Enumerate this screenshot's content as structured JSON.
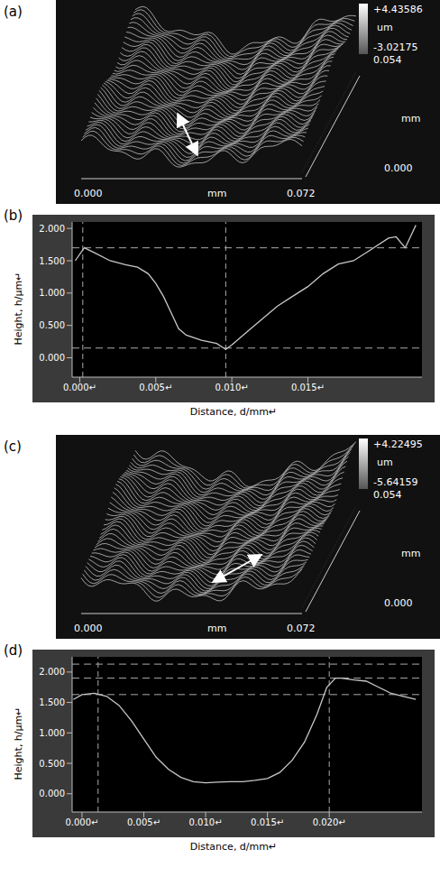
{
  "chart_data": [
    {
      "type": "surface",
      "panel": "(a)",
      "zmax_label": "+4.43586",
      "z_unit": "um",
      "zmin_label": "-3.02175",
      "y_range_labels": [
        "0.054",
        "0.000"
      ],
      "y_unit": "mm",
      "x_range_labels": [
        "0.000",
        "0.072"
      ],
      "x_unit": "mm"
    },
    {
      "type": "line",
      "panel": "(b)",
      "xlabel": "Distance, d/mm↵",
      "ylabel": "Height, h/μm↵",
      "color": "#c8c8c8",
      "x": [
        -0.0003,
        0.0003,
        0.001,
        0.002,
        0.003,
        0.0038,
        0.0045,
        0.005,
        0.0055,
        0.006,
        0.0065,
        0.007,
        0.008,
        0.009,
        0.0096,
        0.01,
        0.011,
        0.012,
        0.013,
        0.014,
        0.015,
        0.016,
        0.017,
        0.018,
        0.019,
        0.0203,
        0.0208,
        0.0214,
        0.0221
      ],
      "values": [
        1.5,
        1.7,
        1.62,
        1.5,
        1.44,
        1.4,
        1.3,
        1.15,
        0.95,
        0.7,
        0.45,
        0.35,
        0.27,
        0.22,
        0.13,
        0.2,
        0.4,
        0.6,
        0.8,
        0.95,
        1.1,
        1.3,
        1.45,
        1.5,
        1.65,
        1.85,
        1.87,
        1.7,
        2.05
      ],
      "xlim": [
        -0.0005,
        0.0225
      ],
      "ylim": [
        -0.3,
        2.1
      ],
      "xticks": [
        {
          "value": 0,
          "label": "0.000↵"
        },
        {
          "value": 0.005,
          "label": "0.005↵"
        },
        {
          "value": 0.01,
          "label": "0.010↵"
        },
        {
          "value": 0.015,
          "label": "0.015↵"
        }
      ],
      "yticks": [
        {
          "value": 0,
          "label": "0.000"
        },
        {
          "value": 0.5,
          "label": "0.500"
        },
        {
          "value": 1,
          "label": "1.000"
        },
        {
          "value": 1.5,
          "label": "1.500"
        },
        {
          "value": 2,
          "label": "2.000"
        }
      ],
      "reference_lines": {
        "x": [
          0.0002,
          0.0096
        ],
        "y": [
          1.7,
          0.15
        ]
      }
    },
    {
      "type": "surface",
      "panel": "(c)",
      "zmax_label": "+4.22495",
      "z_unit": "um",
      "zmin_label": "-5.64159",
      "y_range_labels": [
        "0.054",
        "0.000"
      ],
      "y_unit": "mm",
      "x_range_labels": [
        "0.000",
        "0.072"
      ],
      "x_unit": "mm"
    },
    {
      "type": "line",
      "panel": "(d)",
      "xlabel": "Distance, d/mm↵",
      "ylabel": "Height, h/μm↵",
      "color": "#c8c8c8",
      "x": [
        -0.0007,
        0,
        0.001,
        0.002,
        0.003,
        0.004,
        0.005,
        0.006,
        0.007,
        0.008,
        0.009,
        0.01,
        0.011,
        0.012,
        0.013,
        0.014,
        0.015,
        0.016,
        0.017,
        0.018,
        0.019,
        0.0198,
        0.0205,
        0.021,
        0.022,
        0.023,
        0.024,
        0.025,
        0.026,
        0.027
      ],
      "values": [
        1.55,
        1.63,
        1.65,
        1.6,
        1.45,
        1.2,
        0.9,
        0.6,
        0.4,
        0.27,
        0.2,
        0.18,
        0.19,
        0.2,
        0.2,
        0.22,
        0.25,
        0.35,
        0.55,
        0.85,
        1.3,
        1.75,
        1.9,
        1.9,
        1.87,
        1.85,
        1.75,
        1.65,
        1.6,
        1.55
      ],
      "xlim": [
        -0.0008,
        0.0275
      ],
      "ylim": [
        -0.3,
        2.25
      ],
      "xticks": [
        {
          "value": 0,
          "label": "0.000↵"
        },
        {
          "value": 0.005,
          "label": "0.005↵"
        },
        {
          "value": 0.01,
          "label": "0.010↵"
        },
        {
          "value": 0.015,
          "label": "0.015↵"
        },
        {
          "value": 0.02,
          "label": "0.020↵"
        }
      ],
      "yticks": [
        {
          "value": 0,
          "label": "0.000"
        },
        {
          "value": 0.5,
          "label": "0.500"
        },
        {
          "value": 1,
          "label": "1.000"
        },
        {
          "value": 1.5,
          "label": "1.500"
        },
        {
          "value": 2,
          "label": "2.000"
        }
      ],
      "reference_lines": {
        "x": [
          0.0013,
          0.02
        ],
        "y": [
          2.13,
          1.9,
          1.63
        ]
      }
    }
  ]
}
